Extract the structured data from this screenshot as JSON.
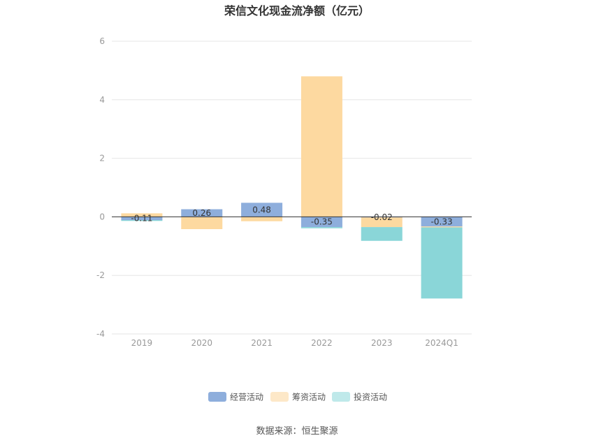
{
  "chart_data": {
    "type": "bar",
    "stacked": true,
    "title": "荣信文化现金流净额（亿元）",
    "categories": [
      "2019",
      "2020",
      "2021",
      "2022",
      "2023",
      "2024Q1"
    ],
    "series": [
      {
        "name": "经营活动",
        "color": "#8eaedc",
        "values": [
          -0.11,
          0.26,
          0.48,
          -0.35,
          -0.02,
          -0.33
        ]
      },
      {
        "name": "筹资活动",
        "color": "#fdd9a0",
        "values": [
          0.12,
          -0.42,
          -0.15,
          4.8,
          -0.33,
          -0.03
        ]
      },
      {
        "name": "投资活动",
        "color": "#8ad6d8",
        "values": [
          -0.03,
          0.0,
          0.0,
          -0.04,
          -0.47,
          -2.43
        ]
      }
    ],
    "data_labels": [
      "-0.11",
      "0.26",
      "0.48",
      "-0.35",
      "-0.02",
      "-0.33"
    ],
    "yticks": [
      "6",
      "4",
      "2",
      "0",
      "-2",
      "-4"
    ],
    "ylim": [
      -4,
      6
    ],
    "grid": true,
    "legend_position": "bottom"
  },
  "legend_colors": {
    "经营活动": "#8eaedc",
    "筹资活动": "#fde8c8",
    "投资活动": "#bfe9ea"
  },
  "source": "数据来源：恒生聚源"
}
